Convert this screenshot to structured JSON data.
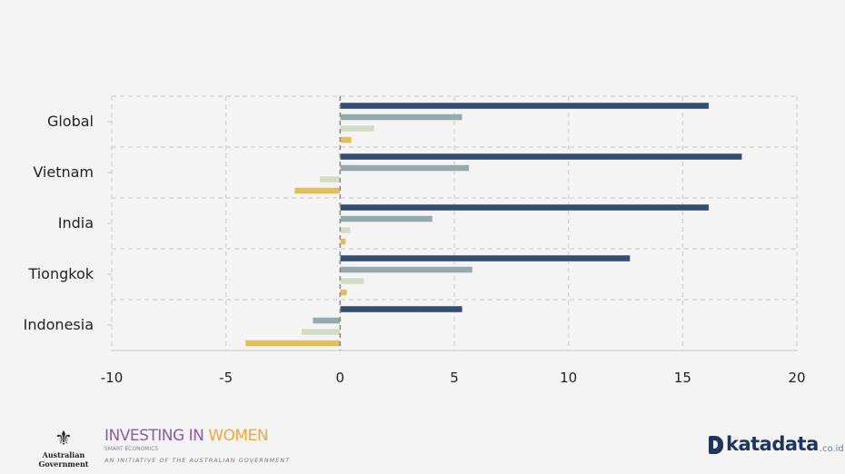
{
  "chart_data": {
    "type": "bar",
    "orientation": "horizontal",
    "categories": [
      "Global",
      "Vietnam",
      "India",
      "Tiongkok",
      "Indonesia"
    ],
    "series": [
      {
        "values": [
          16.15,
          17.6,
          16.15,
          12.7,
          5.35
        ],
        "color": "#344d75"
      },
      {
        "values": [
          5.35,
          5.65,
          4.05,
          5.8,
          -1.2
        ],
        "color": "#97abae"
      },
      {
        "values": [
          1.5,
          -0.9,
          0.45,
          1.05,
          -1.7
        ],
        "color": "#d3dac5"
      },
      {
        "values": [
          0.5,
          -2.0,
          0.25,
          0.3,
          -4.15
        ],
        "color": "#e0bf5c"
      }
    ],
    "xlim": [
      -10,
      20
    ],
    "xticks": [
      -10,
      -5,
      0,
      5,
      10,
      15,
      20
    ],
    "xtick_labels": [
      "-10",
      "-5",
      "0",
      "5",
      "10",
      "15",
      "20"
    ],
    "grid": true,
    "title": "",
    "xlabel": "",
    "ylabel": ""
  },
  "footer": {
    "australian_government": "Australian Government",
    "investing": "INVESTING IN ",
    "women": "WOMEN",
    "smart_economics": "SMART ECONOMICS",
    "initiative": "AN INITIATIVE OF THE AUSTRALIAN GOVERNMENT",
    "katadata": "katadata",
    "katadata_suffix": ".co.id"
  }
}
